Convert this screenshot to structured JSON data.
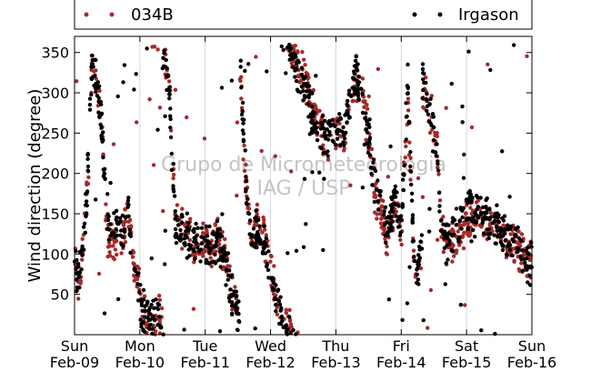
{
  "chart_data": {
    "type": "scatter",
    "ylabel": "Wind direction (degree)",
    "xlabel": "",
    "ylim": [
      0,
      370
    ],
    "yticks": [
      50,
      100,
      150,
      200,
      250,
      300,
      350
    ],
    "xlim": [
      0,
      7
    ],
    "xticks": [
      {
        "day": 0,
        "weekday": "Sun",
        "date": "Feb-09"
      },
      {
        "day": 1,
        "weekday": "Mon",
        "date": "Feb-10"
      },
      {
        "day": 2,
        "weekday": "Tue",
        "date": "Feb-11"
      },
      {
        "day": 3,
        "weekday": "Wed",
        "date": "Feb-12"
      },
      {
        "day": 4,
        "weekday": "Thu",
        "date": "Feb-13"
      },
      {
        "day": 5,
        "weekday": "Fri",
        "date": "Feb-14"
      },
      {
        "day": 6,
        "weekday": "Sat",
        "date": "Feb-15"
      },
      {
        "day": 7,
        "weekday": "Sun",
        "date": "Feb-16"
      }
    ],
    "grid": "vertical",
    "legend_placement": "top",
    "watermark": [
      "Grupo de Micrometeorologia",
      "IAG / USP"
    ],
    "series": [
      {
        "name": "034B",
        "color": "#a52a2a",
        "trend": [
          [
            0.0,
            90
          ],
          [
            0.05,
            60
          ],
          [
            0.12,
            100
          ],
          [
            0.17,
            140
          ],
          [
            0.22,
            220
          ],
          [
            0.27,
            340
          ],
          [
            0.35,
            310
          ],
          [
            0.42,
            260
          ],
          [
            0.5,
            120
          ],
          [
            0.75,
            120
          ],
          [
            0.82,
            160
          ],
          [
            0.88,
            100
          ],
          [
            0.95,
            80
          ],
          [
            1.02,
            40
          ],
          [
            1.1,
            25
          ],
          [
            1.2,
            15
          ],
          [
            1.3,
            25
          ],
          [
            1.38,
            330
          ],
          [
            1.45,
            310
          ],
          [
            1.55,
            140
          ],
          [
            1.7,
            130
          ],
          [
            1.85,
            110
          ],
          [
            2.0,
            110
          ],
          [
            2.1,
            100
          ],
          [
            2.2,
            120
          ],
          [
            2.3,
            100
          ],
          [
            2.4,
            60
          ],
          [
            2.5,
            20
          ],
          [
            2.55,
            310
          ],
          [
            2.62,
            200
          ],
          [
            2.7,
            120
          ],
          [
            2.8,
            140
          ],
          [
            2.9,
            120
          ],
          [
            3.0,
            90
          ],
          [
            3.1,
            40
          ],
          [
            3.2,
            15
          ],
          [
            3.3,
            5
          ],
          [
            3.33,
            350
          ],
          [
            3.45,
            330
          ],
          [
            3.55,
            310
          ],
          [
            3.65,
            280
          ],
          [
            3.75,
            260
          ],
          [
            3.85,
            240
          ],
          [
            4.0,
            250
          ],
          [
            4.1,
            240
          ],
          [
            4.2,
            280
          ],
          [
            4.3,
            320
          ],
          [
            4.4,
            300
          ],
          [
            4.5,
            250
          ],
          [
            4.6,
            170
          ],
          [
            4.7,
            150
          ],
          [
            4.8,
            110
          ],
          [
            4.9,
            170
          ],
          [
            5.0,
            120
          ],
          [
            5.1,
            300
          ],
          [
            5.15,
            180
          ],
          [
            5.2,
            80
          ],
          [
            5.25,
            60
          ],
          [
            5.3,
            100
          ],
          [
            5.35,
            300
          ],
          [
            5.42,
            280
          ],
          [
            5.5,
            260
          ],
          [
            5.55,
            230
          ],
          [
            5.6,
            150
          ],
          [
            5.7,
            100
          ],
          [
            5.8,
            120
          ],
          [
            5.9,
            130
          ],
          [
            6.0,
            140
          ],
          [
            6.1,
            150
          ],
          [
            6.25,
            140
          ],
          [
            6.4,
            140
          ],
          [
            6.5,
            130
          ],
          [
            6.6,
            120
          ],
          [
            6.75,
            110
          ],
          [
            6.9,
            100
          ],
          [
            7.0,
            90
          ]
        ]
      },
      {
        "name": "Irgason",
        "color": "#000000",
        "trend": [
          [
            0.0,
            95
          ],
          [
            0.06,
            65
          ],
          [
            0.12,
            110
          ],
          [
            0.17,
            150
          ],
          [
            0.22,
            230
          ],
          [
            0.27,
            345
          ],
          [
            0.35,
            300
          ],
          [
            0.42,
            250
          ],
          [
            0.5,
            130
          ],
          [
            0.75,
            130
          ],
          [
            0.82,
            150
          ],
          [
            0.88,
            110
          ],
          [
            0.95,
            70
          ],
          [
            1.02,
            30
          ],
          [
            1.1,
            20
          ],
          [
            1.2,
            20
          ],
          [
            1.3,
            30
          ],
          [
            1.38,
            340
          ],
          [
            1.45,
            300
          ],
          [
            1.55,
            130
          ],
          [
            1.7,
            125
          ],
          [
            1.85,
            115
          ],
          [
            2.0,
            105
          ],
          [
            2.1,
            110
          ],
          [
            2.2,
            115
          ],
          [
            2.3,
            95
          ],
          [
            2.4,
            50
          ],
          [
            2.5,
            30
          ],
          [
            2.55,
            320
          ],
          [
            2.62,
            190
          ],
          [
            2.7,
            125
          ],
          [
            2.8,
            135
          ],
          [
            2.9,
            115
          ],
          [
            3.0,
            80
          ],
          [
            3.1,
            35
          ],
          [
            3.2,
            10
          ],
          [
            3.3,
            10
          ],
          [
            3.33,
            345
          ],
          [
            3.45,
            320
          ],
          [
            3.55,
            300
          ],
          [
            3.65,
            270
          ],
          [
            3.75,
            255
          ],
          [
            3.85,
            245
          ],
          [
            4.0,
            255
          ],
          [
            4.1,
            245
          ],
          [
            4.2,
            290
          ],
          [
            4.3,
            330
          ],
          [
            4.4,
            290
          ],
          [
            4.5,
            240
          ],
          [
            4.6,
            180
          ],
          [
            4.7,
            160
          ],
          [
            4.8,
            120
          ],
          [
            4.9,
            180
          ],
          [
            5.0,
            130
          ],
          [
            5.1,
            310
          ],
          [
            5.15,
            190
          ],
          [
            5.2,
            90
          ],
          [
            5.25,
            70
          ],
          [
            5.3,
            110
          ],
          [
            5.35,
            310
          ],
          [
            5.42,
            285
          ],
          [
            5.5,
            265
          ],
          [
            5.55,
            220
          ],
          [
            5.6,
            140
          ],
          [
            5.7,
            110
          ],
          [
            5.8,
            125
          ],
          [
            5.9,
            140
          ],
          [
            6.0,
            150
          ],
          [
            6.1,
            155
          ],
          [
            6.25,
            145
          ],
          [
            6.4,
            145
          ],
          [
            6.5,
            135
          ],
          [
            6.6,
            125
          ],
          [
            6.75,
            115
          ],
          [
            6.9,
            95
          ],
          [
            7.0,
            85
          ]
        ]
      }
    ]
  }
}
